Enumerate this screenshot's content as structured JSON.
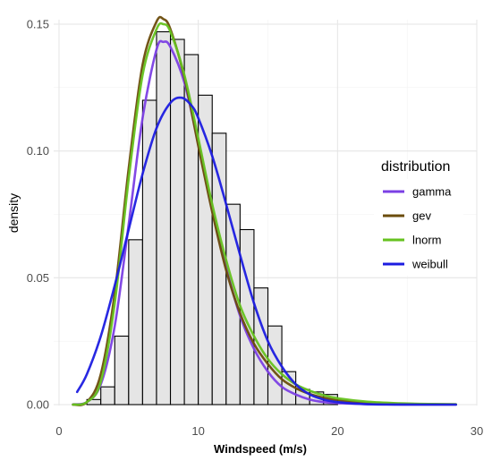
{
  "chart_data": {
    "type": "histogram-with-density-curves",
    "xlabel": "Windspeed (m/s)",
    "ylabel": "density",
    "xlim": [
      0,
      30
    ],
    "ylim": [
      0,
      0.15
    ],
    "x_ticks": [
      "0",
      "10",
      "20",
      "30"
    ],
    "y_ticks": [
      "0.00",
      "0.05",
      "0.10",
      "0.15"
    ],
    "grid": true,
    "legend": {
      "title": "distribution",
      "position": "right",
      "entries": [
        "gamma",
        "gev",
        "lnorm",
        "weibull"
      ]
    },
    "histogram": {
      "bin_width": 1,
      "bins_start": [
        2,
        3,
        4,
        5,
        6,
        7,
        8,
        9,
        10,
        11,
        12,
        13,
        14,
        15,
        16,
        17,
        18,
        19
      ],
      "density": [
        0.002,
        0.007,
        0.027,
        0.065,
        0.12,
        0.147,
        0.144,
        0.138,
        0.122,
        0.107,
        0.079,
        0.069,
        0.046,
        0.031,
        0.013,
        0.006,
        0.005,
        0.004
      ],
      "fill": "#e5e5e5",
      "stroke": "#000000"
    },
    "series": [
      {
        "name": "gamma",
        "color": "#7b3fe4",
        "x": [
          1,
          2,
          3,
          4,
          5,
          6,
          7,
          7.5,
          8,
          9,
          10,
          11,
          12,
          13,
          14,
          15,
          16,
          17,
          18,
          19,
          20,
          22,
          24,
          26,
          28.5
        ],
        "y": [
          0.0001,
          0.001,
          0.008,
          0.031,
          0.071,
          0.113,
          0.14,
          0.143,
          0.141,
          0.127,
          0.103,
          0.077,
          0.054,
          0.035,
          0.022,
          0.013,
          0.007,
          0.004,
          0.002,
          0.001,
          0.0006,
          0.0002,
          5e-05,
          1e-05,
          0.0
        ]
      },
      {
        "name": "gev",
        "color": "#6b4c0c",
        "x": [
          1,
          2,
          3,
          4,
          5,
          6,
          7,
          7.5,
          8,
          9,
          10,
          11,
          12,
          13,
          14,
          15,
          16,
          17,
          18,
          19,
          20,
          22,
          24,
          26,
          28.5
        ],
        "y": [
          0.0,
          0.001,
          0.012,
          0.044,
          0.093,
          0.134,
          0.151,
          0.152,
          0.148,
          0.129,
          0.102,
          0.076,
          0.053,
          0.036,
          0.024,
          0.016,
          0.01,
          0.0065,
          0.0042,
          0.0027,
          0.0018,
          0.0008,
          0.0004,
          0.0002,
          0.0001
        ]
      },
      {
        "name": "lnorm",
        "color": "#66c21f",
        "x": [
          1,
          2,
          3,
          4,
          5,
          6,
          7,
          7.5,
          8,
          9,
          10,
          11,
          12,
          13,
          14,
          15,
          16,
          17,
          18,
          19,
          20,
          22,
          24,
          26,
          28.5
        ],
        "y": [
          0.0,
          0.001,
          0.009,
          0.04,
          0.089,
          0.13,
          0.148,
          0.15,
          0.147,
          0.13,
          0.105,
          0.079,
          0.057,
          0.039,
          0.027,
          0.018,
          0.012,
          0.008,
          0.0055,
          0.0037,
          0.0025,
          0.0012,
          0.0006,
          0.0003,
          0.0001
        ]
      },
      {
        "name": "weibull",
        "color": "#1c1ce0",
        "x": [
          1.3,
          2,
          3,
          4,
          5,
          6,
          7,
          8,
          8.8,
          9.5,
          10,
          11,
          12,
          13,
          14,
          15,
          16,
          17,
          18,
          19,
          20,
          22,
          24,
          26,
          28.5
        ],
        "y": [
          0.005,
          0.012,
          0.027,
          0.047,
          0.069,
          0.091,
          0.109,
          0.119,
          0.121,
          0.118,
          0.113,
          0.098,
          0.079,
          0.059,
          0.04,
          0.025,
          0.015,
          0.008,
          0.004,
          0.002,
          0.001,
          0.0002,
          3e-05,
          0.0,
          0.0
        ]
      }
    ]
  }
}
